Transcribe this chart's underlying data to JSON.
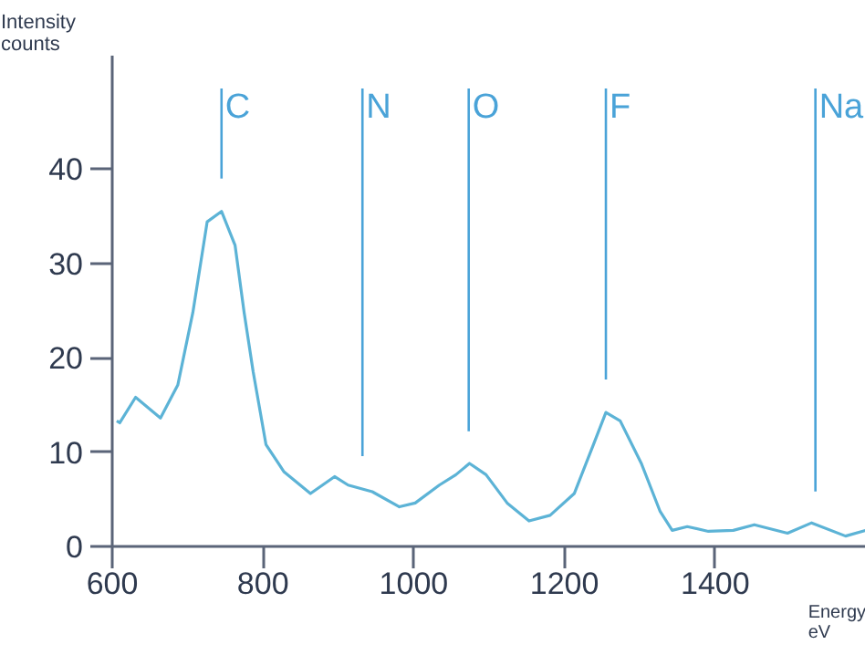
{
  "chart_data": {
    "type": "line",
    "xlabel": "Energy\neV",
    "ylabel": "Intensity\ncounts",
    "xlim": [
      600,
      1600
    ],
    "ylim": [
      0,
      52
    ],
    "xticks": [
      600,
      800,
      1000,
      1200,
      1400
    ],
    "yticks": [
      0,
      10,
      20,
      30,
      40
    ],
    "grid": false,
    "marker": "none",
    "line_style": "solid",
    "series": [
      {
        "color": "#5cb3d6",
        "x": [
          606,
          610,
          631,
          664,
          687,
          707,
          726,
          745,
          763,
          775,
          787,
          804,
          828,
          863,
          895,
          913,
          945,
          981,
          1002,
          1034,
          1056,
          1074,
          1096,
          1124,
          1153,
          1181,
          1213,
          1238,
          1255,
          1274,
          1302,
          1327,
          1343,
          1363,
          1391,
          1424,
          1452,
          1496,
          1528,
          1573,
          1600
        ],
        "values": [
          13.3,
          13.1,
          15.8,
          13.6,
          17.1,
          24.8,
          34.4,
          35.5,
          31.9,
          24.8,
          18.5,
          10.8,
          7.9,
          5.6,
          7.4,
          6.5,
          5.8,
          4.2,
          4.6,
          6.5,
          7.6,
          8.8,
          7.6,
          4.6,
          2.7,
          3.3,
          5.6,
          10.7,
          14.2,
          13.3,
          8.8,
          3.7,
          1.7,
          2.1,
          1.6,
          1.7,
          2.3,
          1.4,
          2.5,
          1.1,
          1.7
        ]
      }
    ],
    "ref_lines": [
      {
        "axis": "x",
        "value": 745,
        "label": "C",
        "color": "#4aa3d8"
      },
      {
        "axis": "x",
        "value": 932,
        "label": "N",
        "color": "#4aa3d8"
      },
      {
        "axis": "x",
        "value": 1073,
        "label": "O",
        "color": "#4aa3d8"
      },
      {
        "axis": "x",
        "value": 1255,
        "label": "F",
        "color": "#4aa3d8"
      },
      {
        "axis": "x",
        "value": 1533,
        "label": "Na",
        "color": "#4aa3d8"
      }
    ]
  }
}
